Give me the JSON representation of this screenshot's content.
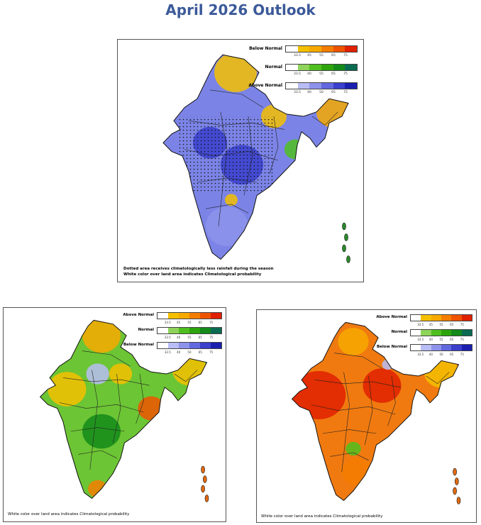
{
  "title": "April 2026 Outlook",
  "panels": [
    {
      "name": "rainfall-outlook",
      "legend": [
        {
          "label": "Below Normal",
          "ticks": [
            "33.5",
            "45",
            "55",
            "65",
            "75"
          ],
          "colors": [
            "#ffffff",
            "#f5c000",
            "#f7a900",
            "#f47d00",
            "#ef5300",
            "#e02000"
          ]
        },
        {
          "label": "Normal",
          "ticks": [
            "33.5",
            "40",
            "55",
            "65",
            "75"
          ],
          "colors": [
            "#ffffff",
            "#8fd45a",
            "#4fbf1f",
            "#2ea40c",
            "#138a1a",
            "#0a6b52"
          ]
        },
        {
          "label": "Above Normal",
          "ticks": [
            "33.5",
            "40",
            "50",
            "65",
            "75"
          ],
          "colors": [
            "#ffffff",
            "#b9bdf5",
            "#8d93ea",
            "#6268de",
            "#3a3fcc",
            "#1a1fb0"
          ]
        }
      ],
      "notes": [
        "Dotted area receives climatologically less rainfall during the season",
        "White color over land area indicates Climatological probability"
      ],
      "dominant_color": "#7b84e6"
    },
    {
      "name": "max-temperature-outlook",
      "legend": [
        {
          "label": "Above Normal",
          "ticks": [
            "33.5",
            "45",
            "55",
            "65",
            "75"
          ],
          "colors": [
            "#ffffff",
            "#f5c000",
            "#f7a900",
            "#f47d00",
            "#ef5300",
            "#e02000"
          ]
        },
        {
          "label": "Normal",
          "ticks": [
            "33.5",
            "40",
            "55",
            "65",
            "75"
          ],
          "colors": [
            "#ffffff",
            "#8fd45a",
            "#4fbf1f",
            "#2ea40c",
            "#138a1a",
            "#0a6b52"
          ]
        },
        {
          "label": "Below Normal",
          "ticks": [
            "33.5",
            "40",
            "50",
            "65",
            "75"
          ],
          "colors": [
            "#ffffff",
            "#b9bdf5",
            "#8d93ea",
            "#6268de",
            "#3a3fcc",
            "#1a1fb0"
          ]
        }
      ],
      "notes": [
        "White color over land area indicates Climatological probability"
      ],
      "dominant_color": "#6cc534"
    },
    {
      "name": "min-temperature-outlook",
      "legend": [
        {
          "label": "Above Normal",
          "ticks": [
            "33.5",
            "45",
            "55",
            "65",
            "75"
          ],
          "colors": [
            "#ffffff",
            "#f5c000",
            "#f7a900",
            "#f47d00",
            "#ef5300",
            "#e02000"
          ]
        },
        {
          "label": "Normal",
          "ticks": [
            "33.5",
            "40",
            "55",
            "65",
            "75"
          ],
          "colors": [
            "#ffffff",
            "#8fd45a",
            "#4fbf1f",
            "#2ea40c",
            "#138a1a",
            "#0a6b52"
          ]
        },
        {
          "label": "Below Normal",
          "ticks": [
            "33.5",
            "40",
            "50",
            "65",
            "75"
          ],
          "colors": [
            "#ffffff",
            "#b9bdf5",
            "#8d93ea",
            "#6268de",
            "#3a3fcc",
            "#1a1fb0"
          ]
        }
      ],
      "notes": [
        "White color over land area indicates Climatological probability"
      ],
      "dominant_color": "#f07a10"
    }
  ]
}
